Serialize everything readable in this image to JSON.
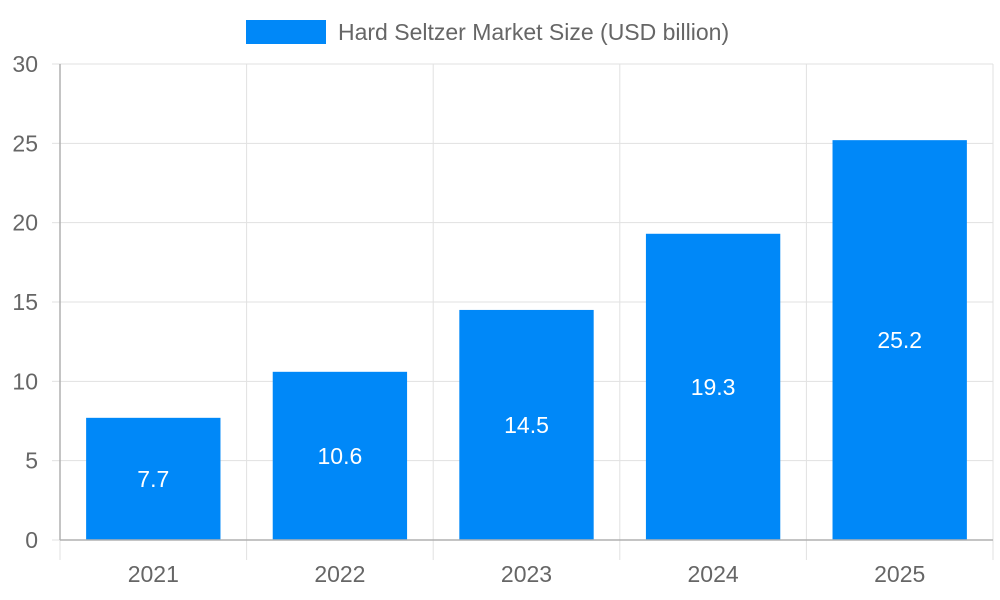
{
  "chart_data": {
    "type": "bar",
    "categories": [
      "2021",
      "2022",
      "2023",
      "2024",
      "2025"
    ],
    "series": [
      {
        "name": "Hard Seltzer Market Size (USD billion)",
        "values": [
          7.7,
          10.6,
          14.5,
          19.3,
          25.2
        ],
        "color": "#0088f8"
      }
    ],
    "ylim": [
      0,
      30
    ],
    "yticks": [
      0,
      5,
      10,
      15,
      20,
      25,
      30
    ],
    "grid": true,
    "legend_position": "top-center",
    "data_labels": [
      "7.7",
      "10.6",
      "14.5",
      "19.3",
      "25.2"
    ]
  }
}
